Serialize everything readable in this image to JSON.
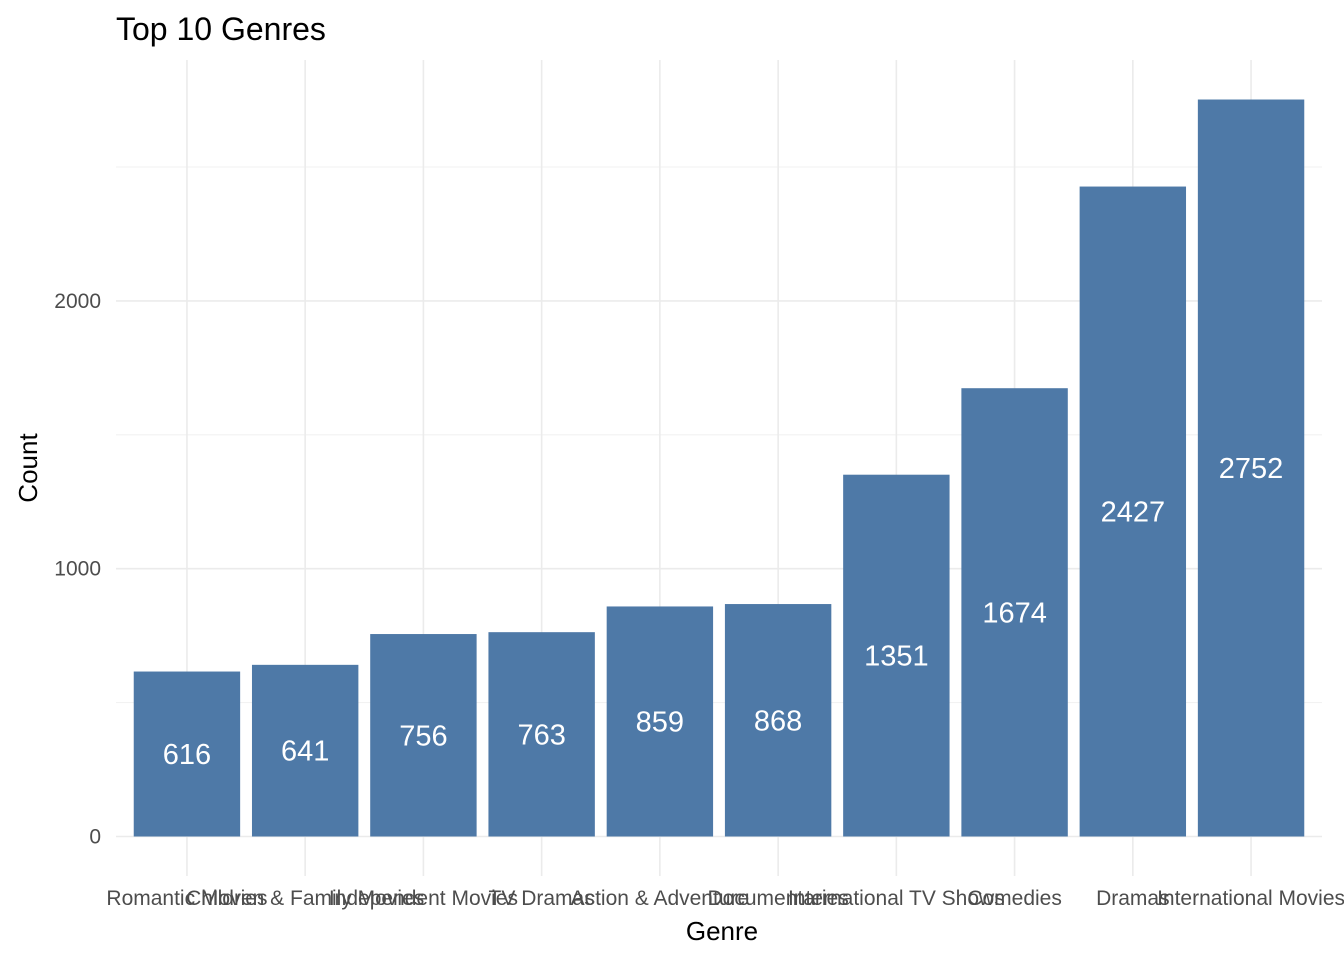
{
  "chart_data": {
    "type": "bar",
    "title": "Top 10 Genres",
    "xlabel": "Genre",
    "ylabel": "Count",
    "categories": [
      "Romantic Movies",
      "Children & Family Movies",
      "Independent Movies",
      "TV Dramas",
      "Action & Adventure",
      "Documentaries",
      "International TV Shows",
      "Comedies",
      "Dramas",
      "International Movies"
    ],
    "values": [
      616,
      641,
      756,
      763,
      859,
      868,
      1351,
      1674,
      2427,
      2752
    ],
    "ylim": [
      0,
      2900
    ],
    "yticks": [
      0,
      1000,
      2000
    ],
    "grid": true,
    "legend": "none",
    "bar_color": "#4e79a7",
    "data_label_color": "#ffffff"
  }
}
